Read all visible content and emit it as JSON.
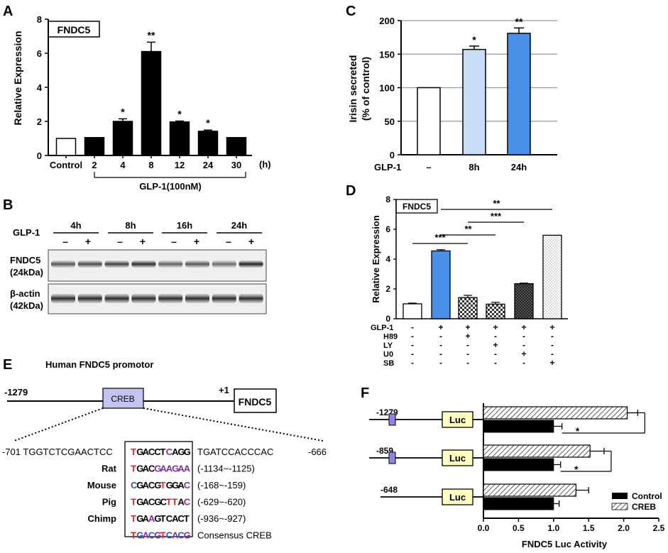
{
  "colors": {
    "blue": "#4a8fe7",
    "light_blue": "#c9dcf5",
    "creb_box": "#c5c3f3",
    "luc_box": "#ffffc0",
    "red": "#e8232a",
    "nt_blue": "#2b56d4",
    "purple": "#7b2fa0"
  },
  "panels": {
    "A": {
      "letter": "A",
      "tag": "FNDC5",
      "group_label": "GLP-1(100nM)",
      "unit_label": "(h)",
      "chart_data": {
        "type": "bar",
        "title": "FNDC5",
        "xlabel": "GLP-1(100nM)",
        "ylabel": "Relative Expression",
        "ylim": [
          0,
          8
        ],
        "yticks": [
          "0",
          "2",
          "4",
          "6",
          "8"
        ],
        "categories": [
          "Control",
          "2",
          "4",
          "8",
          "12",
          "24",
          "30"
        ],
        "values": [
          1.0,
          1.05,
          2.0,
          6.1,
          1.97,
          1.42,
          1.05
        ],
        "errors": [
          0,
          0,
          0.15,
          0.55,
          0.05,
          0.07,
          0
        ],
        "significance": [
          "",
          "",
          "*",
          "**",
          "*",
          "*",
          ""
        ]
      }
    },
    "B": {
      "letter": "B",
      "times": [
        "4h",
        "8h",
        "16h",
        "24h"
      ],
      "glp_label": "GLP-1",
      "signs": [
        "–",
        "+"
      ],
      "band_labels": [
        {
          "name": "FNDC5",
          "mw": "(24kDa)"
        },
        {
          "name": "β-actin",
          "mw": "(42kDa)"
        }
      ]
    },
    "C": {
      "letter": "C",
      "glp_label": "GLP-1",
      "chart_data": {
        "type": "bar",
        "ylabel": "Irisin secreted",
        "ylabel2": "(% of control)",
        "ylim": [
          0,
          200
        ],
        "yticks": [
          "0",
          "50",
          "100",
          "150",
          "200"
        ],
        "grid": true,
        "categories": [
          "–",
          "8h",
          "24h"
        ],
        "values": [
          100,
          157,
          181
        ],
        "errors": [
          0,
          5,
          8
        ],
        "significance": [
          "",
          "*",
          "**"
        ]
      }
    },
    "D": {
      "letter": "D",
      "tag": "FNDC5",
      "chart_data": {
        "type": "bar",
        "ylabel": "Relative Expression",
        "ylim": [
          0,
          8
        ],
        "yticks": [
          "0",
          "2",
          "4",
          "6",
          "8"
        ],
        "values": [
          1.0,
          4.55,
          1.42,
          0.98,
          2.35,
          5.6
        ],
        "errors": [
          0.05,
          0.08,
          0.15,
          0.12,
          0.04,
          0
        ],
        "treatments": [
          {
            "name": "GLP-1",
            "marks": [
              "-",
              "+",
              "+",
              "+",
              "+",
              "+"
            ]
          },
          {
            "name": "H89",
            "marks": [
              "-",
              "-",
              "+",
              "-",
              "-",
              "-"
            ]
          },
          {
            "name": "LY",
            "marks": [
              "-",
              "-",
              "-",
              "+",
              "-",
              "-"
            ]
          },
          {
            "name": "U0",
            "marks": [
              "-",
              "-",
              "-",
              "-",
              "+",
              "-"
            ]
          },
          {
            "name": "SB",
            "marks": [
              "-",
              "-",
              "-",
              "-",
              "-",
              "+"
            ]
          }
        ],
        "comparisons": [
          {
            "from": 1,
            "to": 5,
            "label": "**"
          },
          {
            "from": 2,
            "to": 4,
            "label": "***"
          },
          {
            "from": 1,
            "to": 3,
            "label": "**"
          },
          {
            "from": 0,
            "to": 2,
            "label": "***"
          }
        ]
      }
    },
    "E": {
      "letter": "E",
      "title": "Human FNDC5 promotor",
      "start_label": "-1279",
      "plus_label": "+1",
      "creb_label": "CREB",
      "gene_label": "FNDC5",
      "seq_left": "-701 TGGTCTCGAACTCC",
      "seq_right": "TGATCCACCCAC",
      "seq_end": "-666",
      "rows": [
        {
          "species": "",
          "motif": [
            [
              "T",
              "r"
            ],
            [
              "G",
              "k"
            ],
            [
              "A",
              "k"
            ],
            [
              "C",
              "k"
            ],
            [
              "C",
              "k"
            ],
            [
              "T",
              "k"
            ],
            [
              "C",
              "p"
            ],
            [
              "A",
              "k"
            ],
            [
              "G",
              "k"
            ],
            [
              "G",
              "k"
            ]
          ],
          "range": ""
        },
        {
          "species": "Rat",
          "motif": [
            [
              "T",
              "r"
            ],
            [
              "G",
              "k"
            ],
            [
              "A",
              "k"
            ],
            [
              "C",
              "k"
            ],
            [
              "G",
              "p"
            ],
            [
              "A",
              "p"
            ],
            [
              "A",
              "p"
            ],
            [
              "G",
              "p"
            ],
            [
              "A",
              "p"
            ],
            [
              "A",
              "p"
            ]
          ],
          "range": "(-1134~-1125)"
        },
        {
          "species": "Mouse",
          "motif": [
            [
              "C",
              "b"
            ],
            [
              "G",
              "k"
            ],
            [
              "A",
              "k"
            ],
            [
              "C",
              "k"
            ],
            [
              "G",
              "k"
            ],
            [
              "T",
              "r"
            ],
            [
              "G",
              "k"
            ],
            [
              "G",
              "k"
            ],
            [
              "A",
              "k"
            ],
            [
              "C",
              "p"
            ]
          ],
          "range": "(-168~-159)"
        },
        {
          "species": "Pig",
          "motif": [
            [
              "T",
              "r"
            ],
            [
              "G",
              "k"
            ],
            [
              "A",
              "k"
            ],
            [
              "C",
              "k"
            ],
            [
              "G",
              "k"
            ],
            [
              "C",
              "k"
            ],
            [
              "T",
              "r"
            ],
            [
              "T",
              "r"
            ],
            [
              "A",
              "k"
            ],
            [
              "C",
              "p"
            ]
          ],
          "range": "(-629~-620)"
        },
        {
          "species": "Chimp",
          "motif": [
            [
              "T",
              "r"
            ],
            [
              "G",
              "k"
            ],
            [
              "A",
              "k"
            ],
            [
              "A",
              "p"
            ],
            [
              "G",
              "k"
            ],
            [
              "T",
              "k"
            ],
            [
              "C",
              "k"
            ],
            [
              "A",
              "k"
            ],
            [
              "C",
              "k"
            ],
            [
              "T",
              "k"
            ]
          ],
          "range": "(-936~-927)"
        },
        {
          "species": "",
          "motif": [
            [
              "T",
              "r"
            ],
            [
              "G",
              "b"
            ],
            [
              "A",
              "p"
            ],
            [
              "C",
              "b"
            ],
            [
              "G",
              "p"
            ],
            [
              "T",
              "r"
            ],
            [
              "C",
              "b"
            ],
            [
              "A",
              "p"
            ],
            [
              "C",
              "b"
            ],
            [
              "G",
              "p"
            ]
          ],
          "range": "Consensus CREB"
        }
      ]
    },
    "F": {
      "letter": "F",
      "luc_label": "Luc",
      "constructs": [
        {
          "label": "-1279",
          "has_creb": true
        },
        {
          "label": "-859",
          "has_creb": true
        },
        {
          "label": "-648",
          "has_creb": false
        }
      ],
      "chart_data": {
        "type": "bar",
        "orientation": "horizontal",
        "xlabel": "FNDC5 Luc Activity",
        "xlim": [
          0,
          2.5
        ],
        "xticks": [
          "0.0",
          "0.5",
          "1.0",
          "1.5",
          "2.0",
          "2.5"
        ],
        "series": [
          {
            "name": "Control",
            "values": [
              1.0,
              1.0,
              1.0
            ],
            "errors": [
              0.12,
              0.1,
              0.08
            ]
          },
          {
            "name": "CREB",
            "values": [
              2.05,
              1.52,
              1.32
            ],
            "errors": [
              0.15,
              0.2,
              0.18
            ]
          }
        ],
        "significance": [
          "*",
          "*",
          ""
        ],
        "legend": [
          "Control",
          "CREB"
        ],
        "legend_position": "bottom-right"
      }
    }
  }
}
